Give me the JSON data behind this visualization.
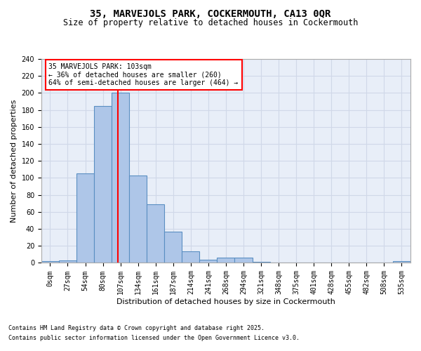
{
  "title": "35, MARVEJOLS PARK, COCKERMOUTH, CA13 0QR",
  "subtitle": "Size of property relative to detached houses in Cockermouth",
  "xlabel": "Distribution of detached houses by size in Cockermouth",
  "ylabel": "Number of detached properties",
  "bar_labels": [
    "0sqm",
    "27sqm",
    "54sqm",
    "80sqm",
    "107sqm",
    "134sqm",
    "161sqm",
    "187sqm",
    "214sqm",
    "241sqm",
    "268sqm",
    "294sqm",
    "321sqm",
    "348sqm",
    "375sqm",
    "401sqm",
    "428sqm",
    "455sqm",
    "482sqm",
    "508sqm",
    "535sqm"
  ],
  "bar_values": [
    2,
    3,
    105,
    185,
    200,
    103,
    69,
    37,
    14,
    4,
    6,
    6,
    1,
    0,
    0,
    0,
    0,
    0,
    0,
    0,
    2
  ],
  "bar_color": "#aec6e8",
  "bar_edge_color": "#5a8fc2",
  "vline_x": 3.85,
  "vline_color": "red",
  "annotation_text": "35 MARVEJOLS PARK: 103sqm\n← 36% of detached houses are smaller (260)\n64% of semi-detached houses are larger (464) →",
  "annotation_box_color": "white",
  "annotation_box_edge": "red",
  "ylim": [
    0,
    240
  ],
  "yticks": [
    0,
    20,
    40,
    60,
    80,
    100,
    120,
    140,
    160,
    180,
    200,
    220,
    240
  ],
  "grid_color": "#d0d8e8",
  "background_color": "#e8eef8",
  "footer_line1": "Contains HM Land Registry data © Crown copyright and database right 2025.",
  "footer_line2": "Contains public sector information licensed under the Open Government Licence v3.0.",
  "title_fontsize": 10,
  "subtitle_fontsize": 8.5,
  "axis_label_fontsize": 8,
  "tick_fontsize": 7,
  "annotation_fontsize": 7,
  "footer_fontsize": 6
}
